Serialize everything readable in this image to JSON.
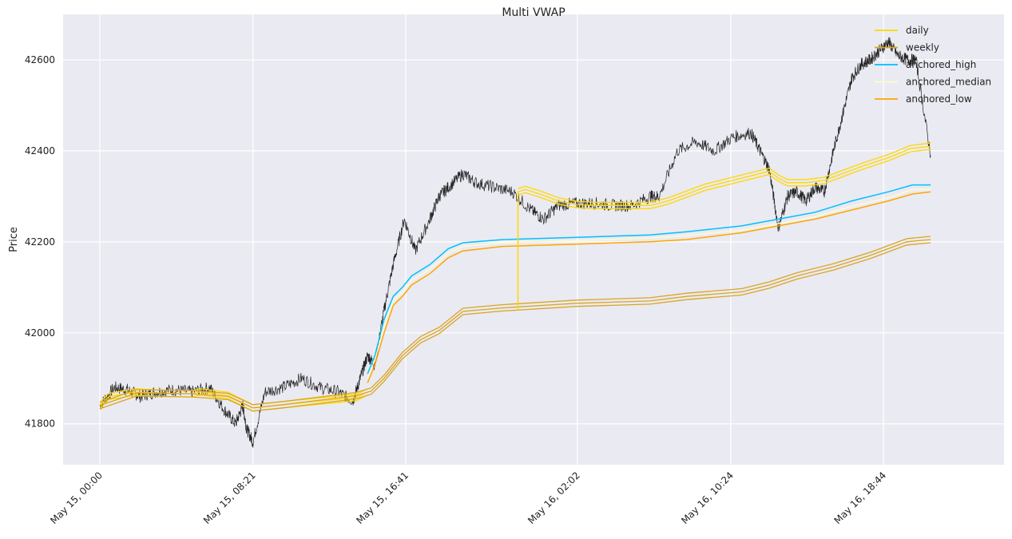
{
  "chart_data": {
    "type": "line",
    "title": "Multi VWAP",
    "xlabel": "",
    "ylabel": "Price",
    "x_tick_labels": [
      "May 15, 00:00",
      "May 15, 08:21",
      "May 15, 16:41",
      "May 16, 02:02",
      "May 16, 10:24",
      "May 16, 18:44"
    ],
    "y_tick_labels": [
      "41800",
      "42000",
      "42200",
      "42400",
      "42600"
    ],
    "y_ticks": [
      41800,
      42000,
      42200,
      42400,
      42600
    ],
    "ylim": [
      41710,
      42700
    ],
    "xlim_hours": [
      -2.0,
      49.3
    ],
    "x_hours_at_ticks": [
      0,
      8.35,
      16.683,
      26.033,
      34.4,
      42.733
    ],
    "grid": true,
    "legend_position": "top-right",
    "colors": {
      "background": "#eaeaf2",
      "price": "#222222",
      "daily": "#FFD700",
      "weekly": "#DAA520",
      "anchored_high": "#00BFFF",
      "anchored_median": "#FFFACD",
      "anchored_low": "#FFA500"
    },
    "price": {
      "name": "",
      "x_hours": [
        0,
        0.8,
        1.5,
        2.2,
        3.0,
        4.0,
        5.0,
        6.0,
        6.8,
        7.4,
        7.8,
        8.0,
        8.35,
        9.0,
        10.0,
        11.0,
        12.0,
        13.0,
        13.8,
        14.2,
        14.6,
        15.0,
        15.5,
        16.0,
        16.6,
        17.2,
        18.0,
        18.5,
        19.0,
        19.8,
        20.5,
        21.5,
        22.5,
        23.5,
        24.2,
        25.0,
        26.0,
        27.0,
        28.0,
        29.0,
        30.0,
        30.5,
        31.5,
        32.5,
        33.5,
        34.5,
        35.5,
        36.0,
        36.5,
        37.0,
        37.5,
        38.0,
        38.5,
        39.0,
        39.5,
        40.0,
        40.5,
        41.0,
        41.5,
        42.0,
        42.5,
        43.0,
        43.5,
        44.0,
        44.5,
        45.3
      ],
      "values": [
        41840,
        41880,
        41875,
        41860,
        41870,
        41875,
        41870,
        41880,
        41830,
        41800,
        41840,
        41790,
        41760,
        41870,
        41880,
        41900,
        41880,
        41870,
        41850,
        41900,
        41950,
        41930,
        42050,
        42150,
        42250,
        42180,
        42250,
        42300,
        42320,
        42350,
        42330,
        42320,
        42310,
        42270,
        42250,
        42280,
        42285,
        42285,
        42280,
        42280,
        42300,
        42300,
        42400,
        42420,
        42400,
        42430,
        42440,
        42400,
        42360,
        42230,
        42300,
        42310,
        42290,
        42320,
        42310,
        42400,
        42480,
        42560,
        42590,
        42600,
        42620,
        42640,
        42610,
        42600,
        42600,
        42390
      ]
    },
    "series": [
      {
        "name": "daily",
        "x_hours": [
          0,
          0.5,
          2.0,
          3.0,
          5.0,
          5.5,
          7.0,
          8.35,
          9.5,
          12.0,
          14.0,
          14.6
        ],
        "values": [
          41840,
          41860,
          41870,
          41868,
          41866,
          41870,
          41862,
          41835,
          41840,
          41850,
          41858,
          41870
        ]
      },
      {
        "name": "daily",
        "x_hours": [
          22.8,
          23.2,
          24.0,
          25.0,
          26.0,
          27.0,
          28.5,
          30.0,
          31.0,
          33.0,
          35.0,
          36.5,
          37.0,
          37.5,
          38.5,
          39.5,
          40.5,
          41.5,
          43.0,
          44.2,
          45.3
        ],
        "values": [
          42310,
          42315,
          42305,
          42290,
          42282,
          42280,
          42280,
          42280,
          42290,
          42320,
          42340,
          42355,
          42340,
          42330,
          42330,
          42335,
          42350,
          42365,
          42385,
          42405,
          42410
        ]
      },
      {
        "name": "weekly",
        "x_hours": [
          0,
          2.0,
          5.0,
          7.0,
          8.35,
          10.0,
          12.0,
          14.0,
          14.8,
          15.5,
          16.5,
          17.5,
          18.5,
          19.8,
          22.0,
          26.0,
          30.0,
          32.0,
          35.0,
          36.5,
          38.0,
          40.0,
          42.0,
          44.0,
          45.3
        ],
        "values": [
          41840,
          41868,
          41866,
          41860,
          41835,
          41842,
          41852,
          41862,
          41872,
          41900,
          41950,
          41985,
          42005,
          42047,
          42055,
          42065,
          42070,
          42080,
          42090,
          42105,
          42125,
          42145,
          42170,
          42200,
          42205
        ]
      },
      {
        "name": "anchored_high",
        "x_hours": [
          14.6,
          15.0,
          15.5,
          16.0,
          16.5,
          17.0,
          18.0,
          19.0,
          19.8,
          22.0,
          26.0,
          30.0,
          32.0,
          35.0,
          37.0,
          39.0,
          41.0,
          43.0,
          44.3,
          45.3
        ],
        "values": [
          41910,
          41950,
          42030,
          42080,
          42100,
          42125,
          42150,
          42185,
          42198,
          42205,
          42210,
          42215,
          42222,
          42235,
          42250,
          42265,
          42290,
          42310,
          42325,
          42325
        ]
      },
      {
        "name": "anchored_median",
        "x_hours": [
          14.6,
          15.0,
          15.5,
          16.0,
          16.5,
          17.0,
          18.0,
          19.0,
          19.8,
          22.0,
          26.0,
          30.0,
          32.0,
          35.0,
          37.0,
          39.0,
          41.0,
          43.0,
          44.3,
          45.3
        ],
        "values": [
          41900,
          41940,
          42015,
          42070,
          42090,
          42115,
          42140,
          42175,
          42190,
          42198,
          42203,
          42208,
          42214,
          42226,
          42240,
          42255,
          42278,
          42297,
          42315,
          42315
        ]
      },
      {
        "name": "anchored_low",
        "x_hours": [
          14.6,
          15.0,
          15.5,
          16.0,
          16.5,
          17.0,
          18.0,
          19.0,
          19.8,
          22.0,
          26.0,
          30.0,
          32.0,
          35.0,
          37.0,
          39.0,
          41.0,
          43.0,
          44.3,
          45.3
        ],
        "values": [
          41890,
          41930,
          42000,
          42060,
          42080,
          42105,
          42130,
          42165,
          42180,
          42190,
          42195,
          42200,
          42205,
          42220,
          42235,
          42250,
          42270,
          42290,
          42305,
          42310
        ]
      }
    ]
  }
}
